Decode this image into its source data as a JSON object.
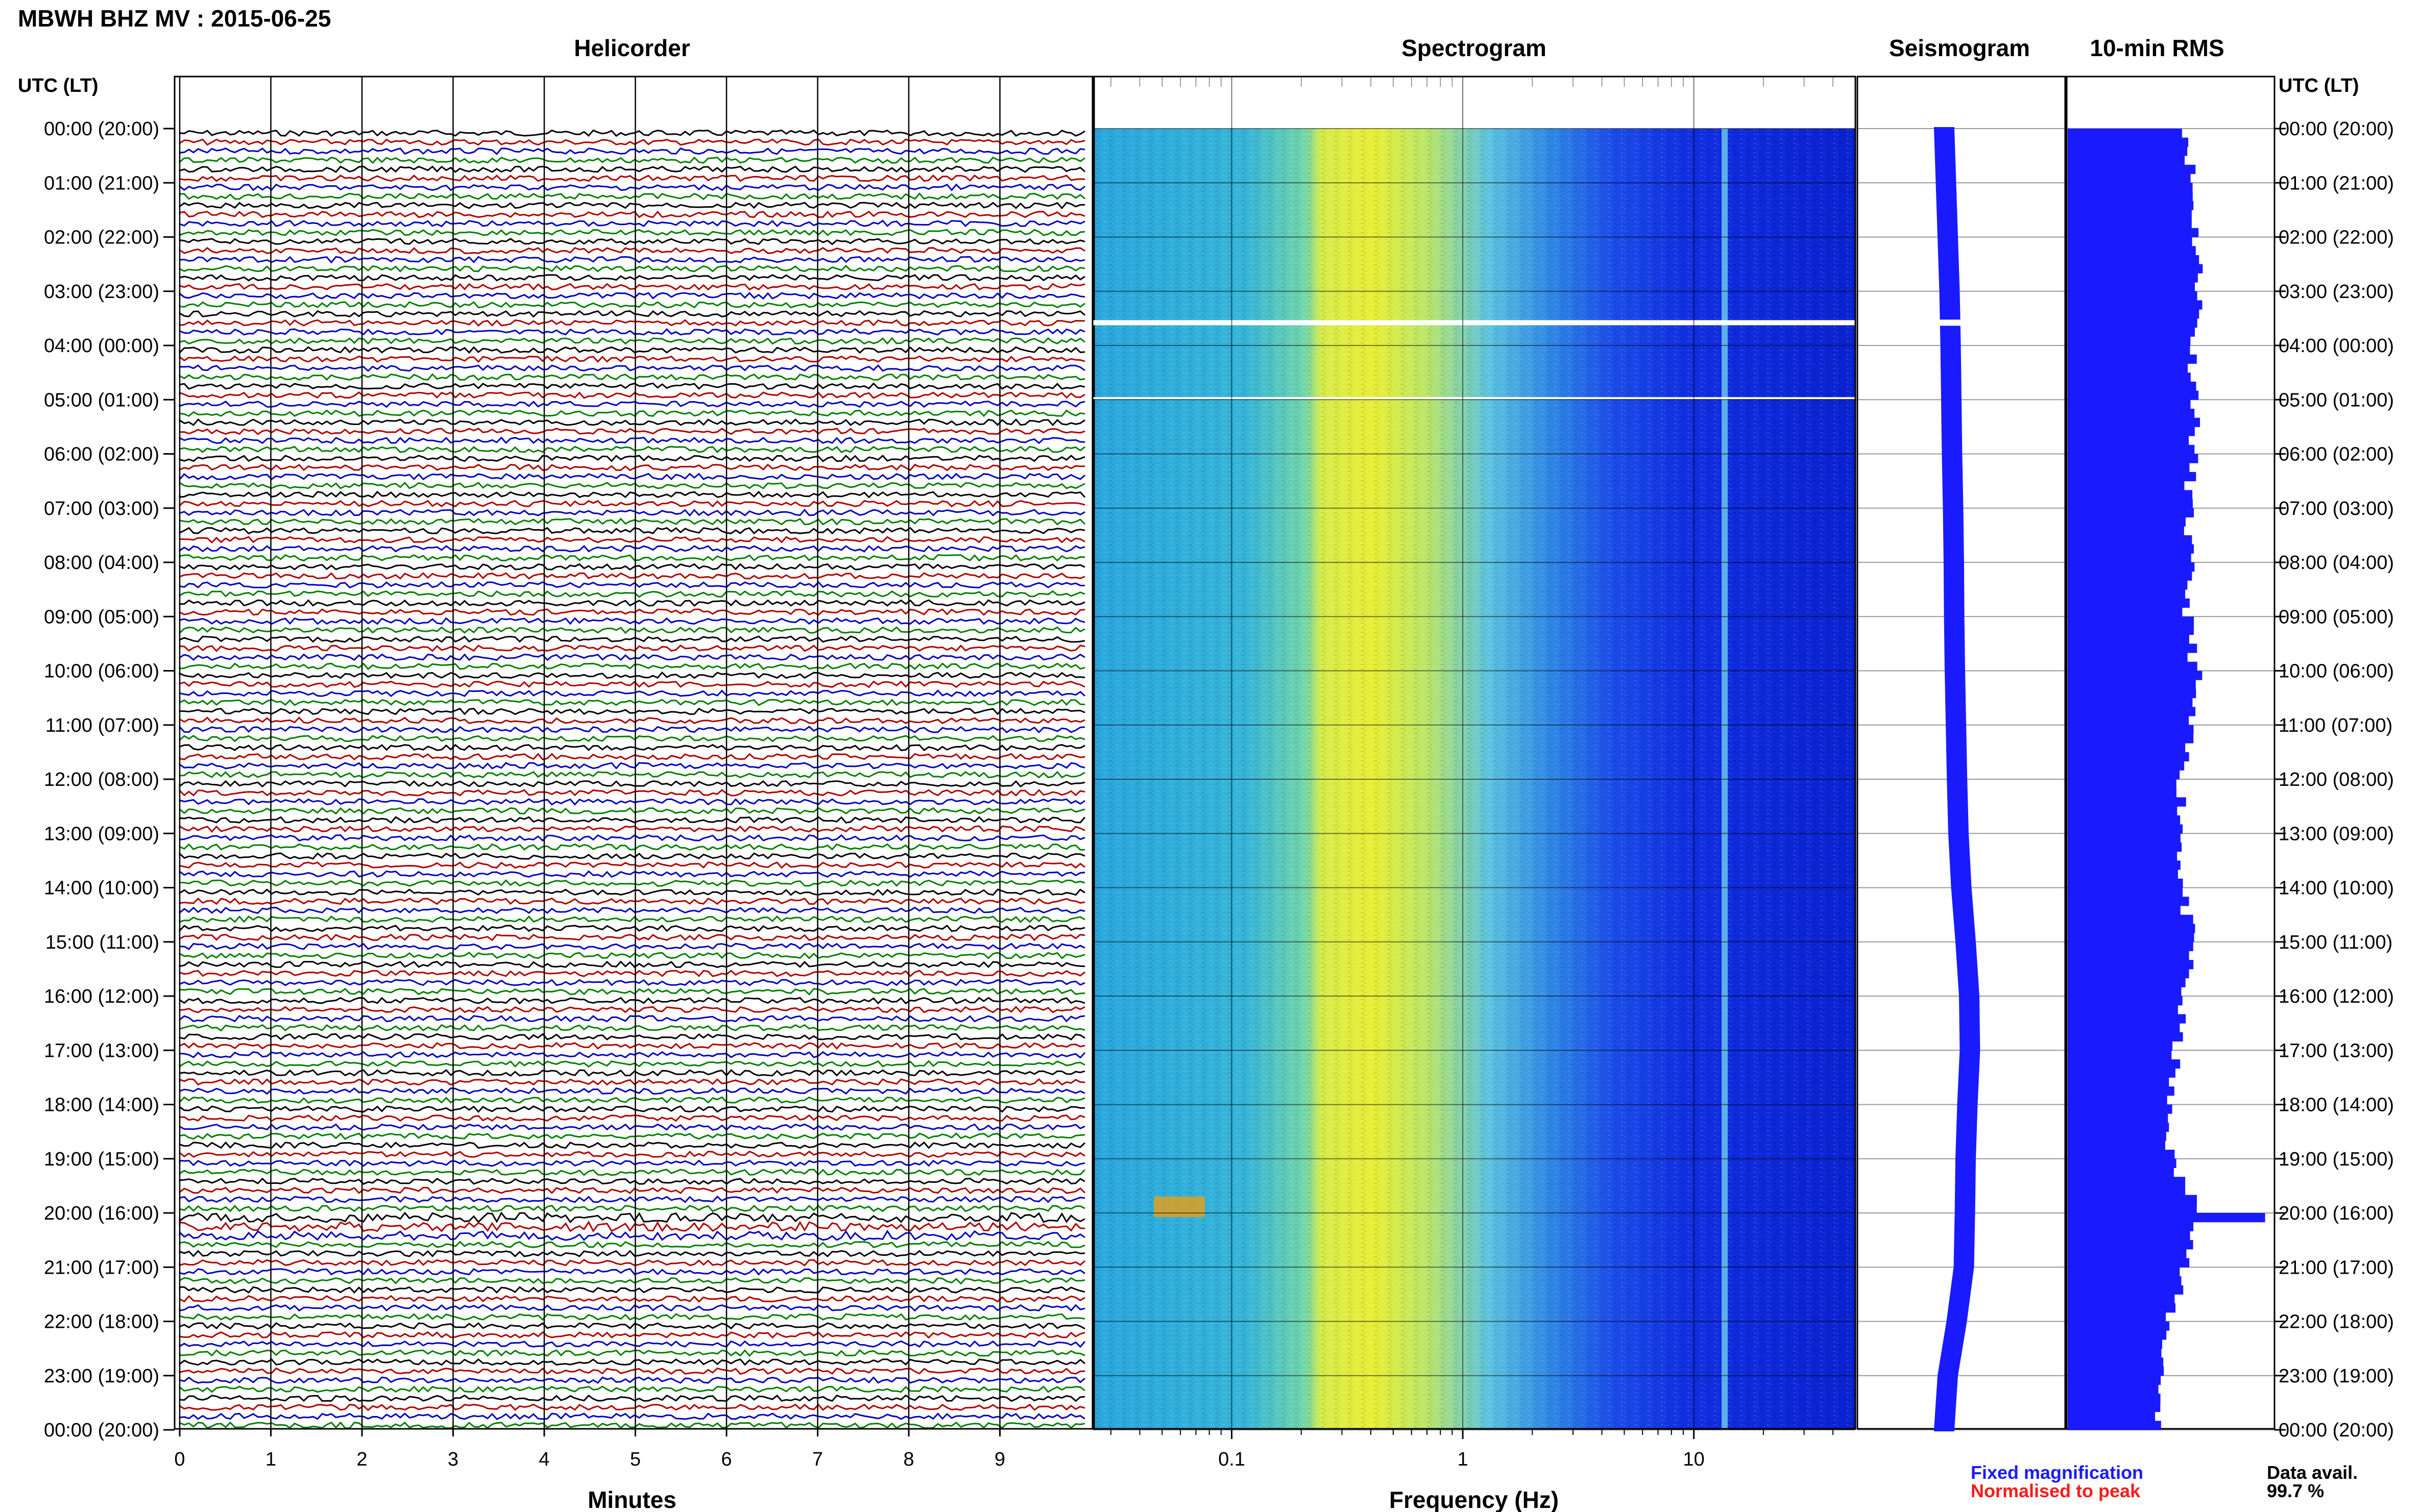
{
  "header": {
    "title": "MBWH BHZ MV : 2015-06-25",
    "utc_label_left": "UTC (LT)",
    "utc_label_right": "UTC (LT)"
  },
  "panels": {
    "helicorder": "Helicorder",
    "spectrogram": "Spectrogram",
    "seismogram": "Seismogram",
    "rms": "10-min RMS"
  },
  "axes": {
    "minutes_label": "Minutes",
    "frequency_label": "Frequency (Hz)",
    "minute_ticks": [
      "0",
      "1",
      "2",
      "3",
      "4",
      "5",
      "6",
      "7",
      "8",
      "9"
    ],
    "frequency_ticks": [
      "0.1",
      "1",
      "10"
    ]
  },
  "time_labels": [
    "00:00 (20:00)",
    "01:00 (21:00)",
    "02:00 (22:00)",
    "03:00 (23:00)",
    "04:00 (00:00)",
    "05:00 (01:00)",
    "06:00 (02:00)",
    "07:00 (03:00)",
    "08:00 (04:00)",
    "09:00 (05:00)",
    "10:00 (06:00)",
    "11:00 (07:00)",
    "12:00 (08:00)",
    "13:00 (09:00)",
    "14:00 (10:00)",
    "15:00 (11:00)",
    "16:00 (12:00)",
    "17:00 (13:00)",
    "18:00 (14:00)",
    "19:00 (15:00)",
    "20:00 (16:00)",
    "21:00 (17:00)",
    "22:00 (18:00)",
    "23:00 (19:00)",
    "00:00 (20:00)"
  ],
  "legend": {
    "fixed": "Fixed magnification",
    "normalised": "Normalised to peak",
    "fixed_color": "#1a1aff",
    "normalised_color": "#ff1a1a"
  },
  "availability": {
    "label": "Data avail.",
    "value": "99.7 %"
  },
  "colors": {
    "trace_cycle": [
      "#000000",
      "#b00000",
      "#0000c0",
      "#008000"
    ],
    "seismogram": "#1a1aff",
    "rms": "#1a1aff"
  },
  "chart_data": {
    "type": "heatmap",
    "helicorder": {
      "rows": 144,
      "minutes_per_row": 10,
      "xlabel": "Minutes",
      "xlim": [
        0,
        10
      ]
    },
    "spectrogram": {
      "xlabel": "Frequency (Hz)",
      "scale": "log",
      "xlim": [
        0.025,
        50
      ],
      "gaps_utc_hours": [
        3.58,
        5.0
      ]
    },
    "seismogram_offset_by_hour": [
      0,
      0.05,
      0.1,
      0.15,
      0.18,
      0.2,
      0.22,
      0.25,
      0.27,
      0.28,
      0.3,
      0.33,
      0.36,
      0.4,
      0.48,
      0.6,
      0.7,
      0.72,
      0.65,
      0.6,
      0.58,
      0.55,
      0.35,
      0.1,
      0
    ],
    "rms_by_hour": [
      0.58,
      0.6,
      0.62,
      0.64,
      0.6,
      0.62,
      0.6,
      0.58,
      0.58,
      0.58,
      0.62,
      0.58,
      0.55,
      0.55,
      0.55,
      0.6,
      0.55,
      0.52,
      0.48,
      0.5,
      0.65,
      0.55,
      0.48,
      0.45,
      0.44
    ]
  }
}
